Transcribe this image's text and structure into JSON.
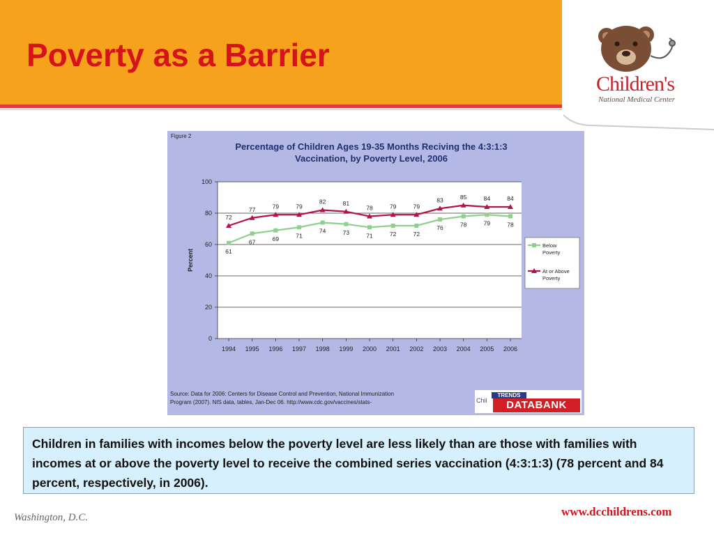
{
  "slide": {
    "title": "Poverty as a Barrier",
    "caption": "Children in families with incomes below the poverty level are less likely than are those with families with incomes at or above the poverty level to receive the combined series vaccination (4:3:1:3) (78 percent and 84 percent, respectively, in 2006).",
    "footer_left": "Washington, D.C.",
    "footer_right": "www.dcchildrens.com"
  },
  "logo": {
    "word": "Children's",
    "subtitle": "National Medical Center",
    "colors": {
      "bear": "#7a4e34",
      "text": "#c8202b"
    }
  },
  "figure": {
    "label": "Figure 2",
    "title_line1": "Percentage of Children Ages 19-35 Months Reciving the 4:3:1:3",
    "title_line2": "Vaccination, by Poverty Level, 2006",
    "source_line1": "Source: Data for 2006:  Centers for Disease Control and Prevention, National Immunization",
    "source_line2": "Program (2007).  NIS data, tables, Jan-Dec 06. http://www.cdc.gov/vaccines/stats-",
    "databank_child": "Chil",
    "databank_trends": "TRENDS",
    "databank_name": "DATABANK"
  },
  "chart_data": {
    "type": "line",
    "title": "Percentage of Children Ages 19-35 Months Reciving the 4:3:1:3 Vaccination, by Poverty Level, 2006",
    "xlabel": "",
    "ylabel": "Percent",
    "x": [
      "1994",
      "1995",
      "1996",
      "1997",
      "1998",
      "1999",
      "2000",
      "2001",
      "2002",
      "2003",
      "2004",
      "2005",
      "2006"
    ],
    "ylim": [
      0,
      100
    ],
    "yticks": [
      0,
      20,
      40,
      60,
      80,
      100
    ],
    "grid": true,
    "legend": "right",
    "series": [
      {
        "name": "Below Poverty",
        "color": "#8fd08f",
        "marker": "square",
        "values": [
          61,
          67,
          69,
          71,
          74,
          73,
          71,
          72,
          72,
          76,
          78,
          79,
          78
        ]
      },
      {
        "name": "At or Above Poverty",
        "color": "#b3124a",
        "marker": "triangle",
        "values": [
          72,
          77,
          79,
          79,
          82,
          81,
          78,
          79,
          79,
          83,
          85,
          84,
          84
        ]
      }
    ]
  }
}
